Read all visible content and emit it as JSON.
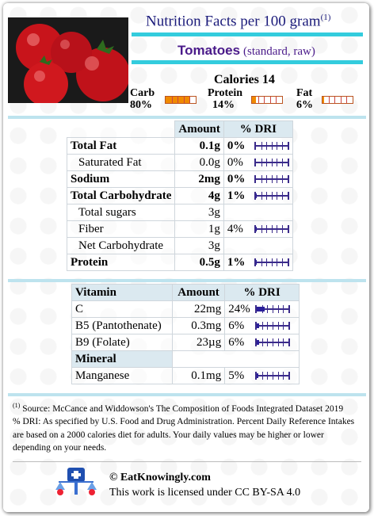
{
  "header": {
    "title": "Nutrition Facts per 100 gram",
    "title_sup": "(1)",
    "food_name": "Tomatoes",
    "food_desc": "(standard, raw)",
    "calories": "Calories 14"
  },
  "macros": [
    {
      "name": "Carb",
      "pct": "80%",
      "value": 80
    },
    {
      "name": "Protein",
      "pct": "14%",
      "value": 14
    },
    {
      "name": "Fat",
      "pct": "6%",
      "value": 6
    }
  ],
  "nutrients": {
    "headers": {
      "amount": "Amount",
      "dri": "% DRI"
    },
    "rows": [
      {
        "name": "Total Fat",
        "amount": "0.1g",
        "dri": "0%",
        "dri_value": 0,
        "bold": true
      },
      {
        "name": "Saturated Fat",
        "amount": "0.0g",
        "dri": "0%",
        "dri_value": 0,
        "bold": false
      },
      {
        "name": "Sodium",
        "amount": "2mg",
        "dri": "0%",
        "dri_value": 0,
        "bold": true
      },
      {
        "name": "Total Carbohydrate",
        "amount": "4g",
        "dri": "1%",
        "dri_value": 1,
        "bold": true
      },
      {
        "name": "Total sugars",
        "amount": "3g",
        "dri": "",
        "bold": false
      },
      {
        "name": "Fiber",
        "amount": "1g",
        "dri": "4%",
        "dri_value": 4,
        "bold": false
      },
      {
        "name": "Net Carbohydrate",
        "amount": "3g",
        "dri": "",
        "bold": false
      },
      {
        "name": "Protein",
        "amount": "0.5g",
        "dri": "1%",
        "dri_value": 1,
        "bold": true
      }
    ]
  },
  "vitamins": {
    "headers": {
      "name": "Vitamin",
      "amount": "Amount",
      "dri": "% DRI"
    },
    "rows": [
      {
        "name": "C",
        "amount": "22mg",
        "dri": "24%",
        "dri_value": 24
      },
      {
        "name": "B5 (Pantothenate)",
        "amount": "0.3mg",
        "dri": "6%",
        "dri_value": 6
      },
      {
        "name": "B9 (Folate)",
        "amount": "23µg",
        "dri": "6%",
        "dri_value": 6
      }
    ],
    "mineral_header": "Mineral",
    "minerals": [
      {
        "name": "Manganese",
        "amount": "0.1mg",
        "dri": "5%",
        "dri_value": 5
      }
    ]
  },
  "footnote": {
    "sup": "(1)",
    "source": "Source: McCance and Widdowson's The Composition of Foods Integrated Dataset 2019",
    "dri_note": "% DRI: As specified by U.S. Food and Drug Administration. Percent Daily Reference Intakes are based on a 2000 calories diet for adults. Your daily values may be higher or lower depending on your needs."
  },
  "brand": {
    "site": "© EatKnowingly.com",
    "license": "This work is licensed under CC BY-SA 4.0"
  },
  "colors": {
    "accent": "#33ccdd",
    "title": "#1a1a7a",
    "food": "#4a1a8a",
    "bar_fill": "#f08a00",
    "dri": "#2a1f9a"
  }
}
